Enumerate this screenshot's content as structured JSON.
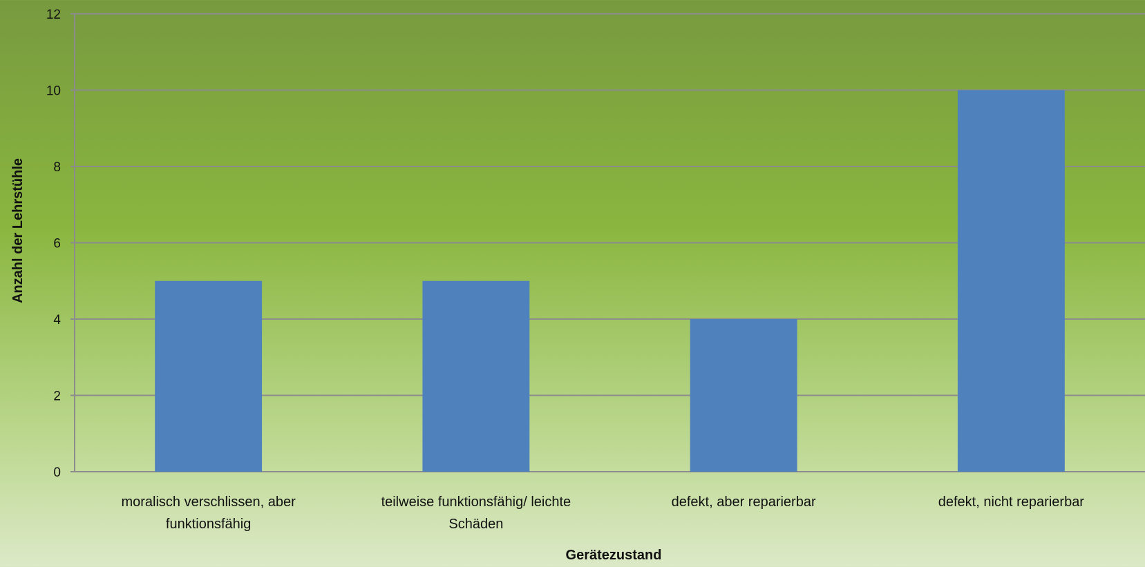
{
  "chart_data": {
    "type": "bar",
    "categories": [
      [
        "moralisch verschlissen, aber",
        "funktionsfähig"
      ],
      [
        "teilweise funktionsfähig/ leichte",
        "Schäden"
      ],
      [
        "defekt, aber reparierbar"
      ],
      [
        "defekt, nicht reparierbar"
      ]
    ],
    "values": [
      5,
      5,
      4,
      10
    ],
    "xlabel": "Gerätezustand",
    "ylabel": "Anzahl der Lehrstühle",
    "ylim": [
      0,
      12
    ],
    "yticks": [
      0,
      2,
      4,
      6,
      8,
      10,
      12
    ],
    "grid": true,
    "legend": "none",
    "colors": {
      "bar": "#4f81bd",
      "grid": "#8c8c8c",
      "text": "#111111"
    }
  }
}
